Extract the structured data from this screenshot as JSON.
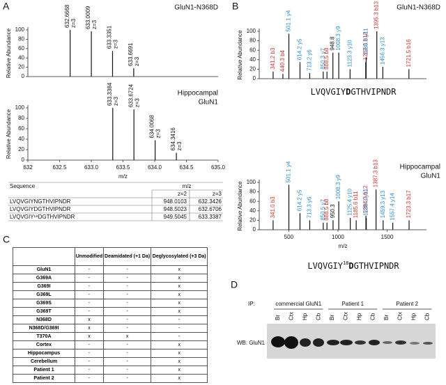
{
  "panels": [
    "A",
    "B",
    "C",
    "D"
  ],
  "chart_data": [
    {
      "type": "stem",
      "title": [
        "GluN1-N368D"
      ],
      "ylabel": "Relative Abundance",
      "xlim": [
        632,
        635
      ],
      "ylim": [
        0,
        100
      ],
      "yticks": [
        0,
        20,
        40,
        60,
        80,
        100
      ],
      "x": [
        632.6668,
        633.0009,
        633.3351,
        633.6691
      ],
      "values": [
        100,
        97,
        55,
        18
      ],
      "x_labels": [
        "632.6668",
        "633.0009",
        "633.3351",
        "633.6691"
      ],
      "z_labels": [
        "z=3",
        "z=3",
        "z=3",
        "z=3"
      ],
      "color": "#111111"
    },
    {
      "type": "stem",
      "title": [
        "Hippocampal",
        "GluN1"
      ],
      "ylabel": "Relative Abundance",
      "xlabel": "m/z",
      "xlim": [
        632,
        635
      ],
      "ylim": [
        0,
        100
      ],
      "yticks": [
        0,
        20,
        40,
        60,
        80,
        100
      ],
      "xticks": [
        632,
        632.5,
        {
          "value": 633,
          "label": "633.0"
        },
        633.5,
        {
          "value": 634,
          "label": "634.0"
        },
        634.5,
        {
          "value": 635,
          "label": "635.0"
        }
      ],
      "x": [
        633.3384,
        633.6724,
        634.0068,
        634.3416
      ],
      "values": [
        100,
        97,
        38,
        14
      ],
      "x_labels": [
        "633.3384",
        "633.6724",
        "634.0068",
        "634.3416"
      ],
      "z_labels": [
        "z=3",
        "z=3",
        "z=3",
        "z=3"
      ],
      "color": "#111111"
    },
    {
      "type": "stem",
      "title": [
        "GluN1-N368D"
      ],
      "ylabel": "Relative Abundance",
      "xlim": [
        200,
        1900
      ],
      "ylim": [
        0,
        100
      ],
      "yticks": [
        0,
        20,
        40,
        60,
        80,
        100
      ],
      "x": [
        341.2,
        440.3,
        501.1,
        614.2,
        713.2,
        850.3,
        888.5,
        948.8,
        1008.3,
        1123.3,
        1282.3,
        1286.3,
        1395.3,
        1456.3,
        1721.5
      ],
      "values": [
        15,
        10,
        95,
        35,
        12,
        15,
        15,
        55,
        55,
        20,
        35,
        45,
        100,
        25,
        20
      ],
      "x_labels": [
        "341.2",
        "440.3",
        "501.1",
        "614.2",
        "713.2",
        "850.3",
        "888.5",
        "948.8",
        "1008.3",
        "1123.3",
        "1282.3",
        "1286.3",
        "1395.3",
        "1456.3",
        "1721.5"
      ],
      "ions": [
        "b3",
        "b4",
        "y4",
        "y5",
        "y6",
        "y7",
        "b8",
        null,
        "y9",
        "y10",
        "b12",
        "y11",
        "b13",
        "y13",
        "b16"
      ],
      "ion_colors": {
        "b": "#d0342c",
        "y": "#2f8fce"
      },
      "color": "#111111",
      "sequence": {
        "before": "LVQVGIY",
        "mod": "D",
        "after": "GTHVIPNDR"
      }
    },
    {
      "type": "stem",
      "title": [
        "Hippocampal",
        "GluN1"
      ],
      "ylabel": "Relative Abundance",
      "xlabel": "m/z",
      "xlim": [
        200,
        1900
      ],
      "ylim": [
        0,
        100
      ],
      "yticks": [
        0,
        20,
        40,
        60,
        80,
        100
      ],
      "xticks": [
        500,
        1000,
        1500
      ],
      "x": [
        341.0,
        501.1,
        614.2,
        713.3,
        850.5,
        888.5,
        950.3,
        1008.3,
        1125.4,
        1185.6,
        1284.3,
        1288.3,
        1387.3,
        1459.3,
        1557.4,
        1723.3
      ],
      "values": [
        20,
        95,
        35,
        20,
        15,
        15,
        20,
        60,
        25,
        20,
        30,
        25,
        85,
        20,
        15,
        20
      ],
      "x_labels": [
        "341.0",
        "501.1",
        "614.2",
        "713.3",
        "850.5",
        "888.5",
        "950.3",
        "1008.3",
        "1125.4",
        "1185.6",
        "1284.3",
        "1288.3",
        "1387.3",
        "1459.3",
        "1557.4",
        "1723.3"
      ],
      "ions": [
        "b3",
        "y4",
        "y5",
        "y6",
        "y7",
        "b8",
        null,
        "y9",
        "y10",
        "b11",
        "b12",
        "y11",
        "b13",
        "y13",
        "y14",
        "b17"
      ],
      "ion_colors": {
        "b": "#d0342c",
        "y": "#2f8fce"
      },
      "color": "#111111",
      "sequence": {
        "before": "LVQVGIY",
        "sup": "18",
        "mod": "D",
        "after": "GTHVIPNDR"
      }
    }
  ],
  "sequence_table": {
    "headers": [
      "Sequence",
      "m/z"
    ],
    "subheaders": [
      "z=2",
      "z=3"
    ],
    "rows": [
      [
        "LVQVGIYNGTHVIPNDR",
        "948.0103",
        "632.3426"
      ],
      [
        "LVQVGIYDGTHVIPNDR",
        "948.5023",
        "632.6706"
      ],
      [
        "LVQVGIY¹⁸DGTHVIPNDR",
        "949.5045",
        "633.3387"
      ]
    ]
  },
  "table_c": {
    "headers": [
      "Unmodified",
      "Deamidated (+1 Da)",
      "Deglycosylated (+3 Da)"
    ],
    "rows": [
      [
        "GluN1",
        "-",
        "-",
        "x"
      ],
      [
        "G369A",
        "-",
        "-",
        "x"
      ],
      [
        "G369I",
        "-",
        "-",
        "x"
      ],
      [
        "G369L",
        "-",
        "-",
        "x"
      ],
      [
        "G369S",
        "-",
        "-",
        "x"
      ],
      [
        "G369T",
        "-",
        "-",
        "x"
      ],
      [
        "N368D",
        "x",
        "-",
        "-"
      ],
      [
        "N368D/G369I",
        "x",
        "-",
        "-"
      ],
      [
        "T370A",
        "x",
        "x",
        "-"
      ],
      [
        "Cortex",
        "-",
        "-",
        "x"
      ],
      [
        "Hippocampus",
        "-",
        "-",
        "x"
      ],
      [
        "Cerebellum",
        "-",
        "-",
        "x"
      ],
      [
        "Patient 1",
        "-",
        "-",
        "x"
      ],
      [
        "Patient 2",
        "-",
        "-",
        "x"
      ]
    ]
  },
  "blot": {
    "ip_label": "IP:",
    "wb_label": "WB: GluN1",
    "groups": [
      {
        "name": "commercial GluN1",
        "lanes": [
          "Br",
          "Ctx",
          "Hp",
          "Cb"
        ]
      },
      {
        "name": "Patient 1",
        "lanes": [
          "Br",
          "Ctx",
          "Hp",
          "Cb"
        ]
      },
      {
        "name": "Patient 2",
        "lanes": [
          "Br",
          "Ctx",
          "Hp",
          "Cb"
        ]
      }
    ]
  }
}
